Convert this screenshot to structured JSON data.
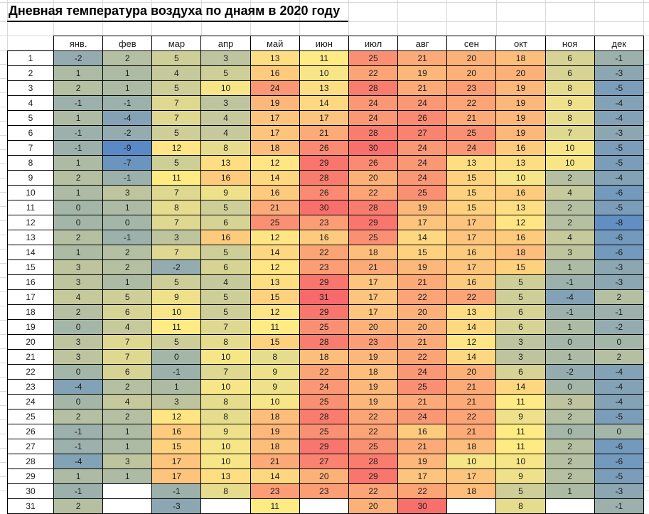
{
  "title": "Дневная температура воздуха по днаям в 2020 году",
  "chart_data": {
    "type": "heatmap",
    "title": "Дневная температура воздуха по днаям в 2020 году",
    "columns": [
      "янв.",
      "фев",
      "мар",
      "апр",
      "май",
      "июн",
      "июл",
      "авг",
      "сен",
      "окт",
      "ноя",
      "дек"
    ],
    "rows": [
      1,
      2,
      3,
      4,
      5,
      6,
      7,
      8,
      9,
      10,
      11,
      12,
      13,
      14,
      15,
      16,
      17,
      18,
      19,
      20,
      21,
      22,
      23,
      24,
      25,
      26,
      27,
      28,
      29,
      30,
      31
    ],
    "values": [
      [
        -2,
        2,
        5,
        3,
        13,
        11,
        25,
        21,
        20,
        18,
        6,
        -1
      ],
      [
        1,
        1,
        4,
        5,
        16,
        10,
        22,
        19,
        20,
        20,
        6,
        -3
      ],
      [
        2,
        1,
        5,
        10,
        24,
        13,
        28,
        21,
        23,
        19,
        8,
        -5
      ],
      [
        -1,
        -1,
        7,
        3,
        19,
        14,
        24,
        24,
        22,
        19,
        9,
        -4
      ],
      [
        1,
        -4,
        7,
        4,
        17,
        17,
        24,
        26,
        21,
        19,
        8,
        -4
      ],
      [
        -1,
        -2,
        5,
        4,
        17,
        21,
        28,
        27,
        25,
        19,
        7,
        -3
      ],
      [
        -1,
        -9,
        12,
        8,
        18,
        26,
        30,
        24,
        24,
        16,
        10,
        -5
      ],
      [
        1,
        -7,
        5,
        13,
        12,
        29,
        26,
        24,
        13,
        13,
        10,
        -5
      ],
      [
        2,
        -1,
        11,
        16,
        14,
        28,
        20,
        24,
        15,
        10,
        2,
        -4
      ],
      [
        1,
        3,
        7,
        9,
        16,
        26,
        22,
        25,
        15,
        16,
        4,
        -6
      ],
      [
        0,
        1,
        8,
        5,
        21,
        30,
        28,
        19,
        15,
        13,
        2,
        -5
      ],
      [
        0,
        0,
        7,
        6,
        25,
        23,
        29,
        17,
        17,
        12,
        2,
        -8
      ],
      [
        2,
        -1,
        3,
        16,
        12,
        16,
        25,
        14,
        17,
        16,
        4,
        -6
      ],
      [
        1,
        2,
        7,
        5,
        14,
        22,
        18,
        15,
        16,
        18,
        3,
        -6
      ],
      [
        3,
        2,
        -2,
        6,
        12,
        23,
        21,
        19,
        17,
        15,
        1,
        -3
      ],
      [
        3,
        1,
        5,
        4,
        13,
        29,
        17,
        21,
        16,
        5,
        -1,
        -3
      ],
      [
        4,
        5,
        9,
        5,
        15,
        31,
        17,
        22,
        22,
        5,
        -4,
        2
      ],
      [
        2,
        6,
        10,
        5,
        12,
        29,
        17,
        20,
        13,
        6,
        -1,
        -1
      ],
      [
        0,
        4,
        11,
        7,
        11,
        25,
        20,
        20,
        14,
        6,
        1,
        -2
      ],
      [
        3,
        7,
        5,
        8,
        15,
        28,
        23,
        21,
        12,
        3,
        0,
        0
      ],
      [
        3,
        7,
        0,
        10,
        8,
        18,
        19,
        22,
        14,
        3,
        1,
        2
      ],
      [
        0,
        6,
        -1,
        7,
        9,
        22,
        18,
        24,
        20,
        6,
        -2,
        -4
      ],
      [
        -4,
        2,
        1,
        10,
        9,
        24,
        19,
        25,
        21,
        14,
        0,
        -4
      ],
      [
        0,
        4,
        3,
        8,
        10,
        25,
        19,
        21,
        21,
        11,
        3,
        -4
      ],
      [
        2,
        2,
        12,
        8,
        18,
        28,
        22,
        24,
        22,
        9,
        2,
        -5
      ],
      [
        -1,
        1,
        16,
        9,
        19,
        25,
        22,
        16,
        21,
        11,
        0,
        0
      ],
      [
        -1,
        1,
        15,
        10,
        18,
        29,
        25,
        21,
        18,
        11,
        2,
        -6
      ],
      [
        -4,
        3,
        17,
        10,
        21,
        27,
        28,
        19,
        10,
        10,
        2,
        -6
      ],
      [
        1,
        1,
        17,
        13,
        14,
        20,
        29,
        17,
        17,
        9,
        2,
        -5
      ],
      [
        -1,
        null,
        -1,
        8,
        23,
        23,
        22,
        22,
        18,
        5,
        1,
        -3
      ],
      [
        2,
        null,
        -3,
        null,
        11,
        null,
        20,
        30,
        null,
        8,
        null,
        -1
      ]
    ],
    "color_scale": {
      "min_value": -9,
      "mid_value": 11,
      "max_value": 31,
      "min_color": "#5A8AC6",
      "mid_color": "#FFEB84",
      "max_color": "#F8696B"
    },
    "grid": true,
    "legend": "none"
  }
}
